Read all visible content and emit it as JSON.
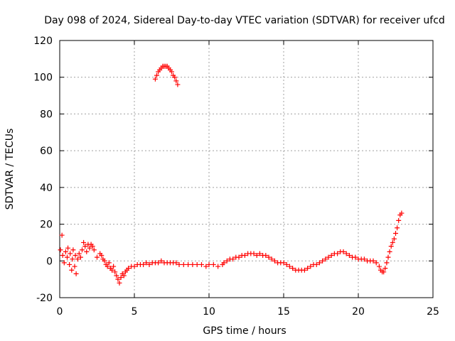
{
  "chart_data": {
    "type": "scatter",
    "title": "Day 098 of 2024, Sidereal Day-to-day VTEC variation (SDTVAR) for receiver ufcd",
    "xlabel": "GPS time / hours",
    "ylabel": "SDTVAR / TECUs",
    "xlim": [
      0,
      25
    ],
    "ylim": [
      -20,
      120
    ],
    "xticks": [
      0,
      5,
      10,
      15,
      20,
      25
    ],
    "yticks": [
      -20,
      0,
      20,
      40,
      60,
      80,
      100,
      120
    ],
    "grid": true,
    "marker": "plus",
    "color": "#ff0000",
    "series": [
      {
        "name": "SDTVAR",
        "points": [
          [
            0.05,
            6
          ],
          [
            0.15,
            14
          ],
          [
            0.2,
            3
          ],
          [
            0.3,
            -1
          ],
          [
            0.4,
            5
          ],
          [
            0.5,
            2
          ],
          [
            0.55,
            7
          ],
          [
            0.65,
            -2
          ],
          [
            0.7,
            4
          ],
          [
            0.8,
            -5
          ],
          [
            0.85,
            1
          ],
          [
            0.9,
            6
          ],
          [
            1.0,
            -3
          ],
          [
            1.05,
            3
          ],
          [
            1.1,
            -7
          ],
          [
            1.2,
            1
          ],
          [
            1.3,
            4
          ],
          [
            1.4,
            2
          ],
          [
            1.5,
            6
          ],
          [
            1.6,
            10
          ],
          [
            1.7,
            8
          ],
          [
            1.8,
            5
          ],
          [
            1.9,
            9
          ],
          [
            2.0,
            7
          ],
          [
            2.1,
            9
          ],
          [
            2.2,
            8
          ],
          [
            2.3,
            6
          ],
          [
            2.5,
            2
          ],
          [
            2.7,
            4
          ],
          [
            2.8,
            3
          ],
          [
            2.9,
            1
          ],
          [
            3.0,
            0
          ],
          [
            3.1,
            -2
          ],
          [
            3.2,
            -3
          ],
          [
            3.3,
            -1
          ],
          [
            3.4,
            -4
          ],
          [
            3.5,
            -5
          ],
          [
            3.6,
            -3
          ],
          [
            3.7,
            -6
          ],
          [
            3.8,
            -8
          ],
          [
            3.9,
            -10
          ],
          [
            4.0,
            -12
          ],
          [
            4.1,
            -9
          ],
          [
            4.2,
            -7
          ],
          [
            4.3,
            -8
          ],
          [
            4.4,
            -6
          ],
          [
            4.5,
            -5
          ],
          [
            4.6,
            -4
          ],
          [
            4.8,
            -3
          ],
          [
            5.0,
            -3
          ],
          [
            5.2,
            -2
          ],
          [
            5.4,
            -2
          ],
          [
            5.6,
            -2
          ],
          [
            5.8,
            -1
          ],
          [
            6.0,
            -2
          ],
          [
            6.2,
            -1
          ],
          [
            6.4,
            -1
          ],
          [
            6.6,
            -1
          ],
          [
            6.8,
            0
          ],
          [
            7.0,
            -1
          ],
          [
            7.2,
            -1
          ],
          [
            7.4,
            -1
          ],
          [
            7.6,
            -1
          ],
          [
            7.8,
            -1
          ],
          [
            8.0,
            -2
          ],
          [
            8.3,
            -2
          ],
          [
            8.6,
            -2
          ],
          [
            8.9,
            -2
          ],
          [
            9.2,
            -2
          ],
          [
            9.5,
            -2
          ],
          [
            9.8,
            -3
          ],
          [
            10.0,
            -2
          ],
          [
            10.3,
            -2
          ],
          [
            10.6,
            -3
          ],
          [
            10.9,
            -2
          ],
          [
            11.0,
            -1
          ],
          [
            11.2,
            0
          ],
          [
            11.4,
            1
          ],
          [
            11.6,
            1
          ],
          [
            11.8,
            2
          ],
          [
            12.0,
            2
          ],
          [
            12.2,
            3
          ],
          [
            12.4,
            3
          ],
          [
            12.6,
            4
          ],
          [
            12.8,
            4
          ],
          [
            13.0,
            4
          ],
          [
            13.2,
            3
          ],
          [
            13.4,
            4
          ],
          [
            13.6,
            3
          ],
          [
            13.8,
            3
          ],
          [
            14.0,
            2
          ],
          [
            14.2,
            1
          ],
          [
            14.4,
            0
          ],
          [
            14.6,
            -1
          ],
          [
            14.8,
            -1
          ],
          [
            15.0,
            -1
          ],
          [
            15.2,
            -2
          ],
          [
            15.4,
            -3
          ],
          [
            15.6,
            -4
          ],
          [
            15.8,
            -5
          ],
          [
            16.0,
            -5
          ],
          [
            16.2,
            -5
          ],
          [
            16.4,
            -5
          ],
          [
            16.6,
            -4
          ],
          [
            16.8,
            -3
          ],
          [
            17.0,
            -2
          ],
          [
            17.2,
            -2
          ],
          [
            17.4,
            -1
          ],
          [
            17.6,
            0
          ],
          [
            17.8,
            1
          ],
          [
            18.0,
            2
          ],
          [
            18.2,
            3
          ],
          [
            18.4,
            4
          ],
          [
            18.6,
            4
          ],
          [
            18.8,
            5
          ],
          [
            19.0,
            5
          ],
          [
            19.2,
            4
          ],
          [
            19.4,
            3
          ],
          [
            19.6,
            2
          ],
          [
            19.8,
            2
          ],
          [
            20.0,
            1
          ],
          [
            20.2,
            1
          ],
          [
            20.4,
            1
          ],
          [
            20.6,
            0
          ],
          [
            20.8,
            0
          ],
          [
            21.0,
            0
          ],
          [
            21.2,
            -1
          ],
          [
            21.4,
            -3
          ],
          [
            21.5,
            -5
          ],
          [
            21.6,
            -6
          ],
          [
            21.7,
            -6
          ],
          [
            21.8,
            -4
          ],
          [
            21.9,
            -1
          ],
          [
            22.0,
            2
          ],
          [
            22.1,
            5
          ],
          [
            22.2,
            8
          ],
          [
            22.3,
            10
          ],
          [
            22.4,
            12
          ],
          [
            22.5,
            15
          ],
          [
            22.6,
            18
          ],
          [
            22.7,
            22
          ],
          [
            22.8,
            25
          ],
          [
            22.9,
            26
          ],
          [
            6.4,
            99
          ],
          [
            6.5,
            101
          ],
          [
            6.6,
            103
          ],
          [
            6.7,
            104
          ],
          [
            6.8,
            105
          ],
          [
            6.9,
            106
          ],
          [
            7.0,
            106
          ],
          [
            7.1,
            106
          ],
          [
            7.2,
            106
          ],
          [
            7.3,
            105
          ],
          [
            7.4,
            104
          ],
          [
            7.5,
            103
          ],
          [
            7.6,
            101
          ],
          [
            7.7,
            100
          ],
          [
            7.8,
            98
          ],
          [
            7.9,
            96
          ]
        ]
      }
    ]
  }
}
